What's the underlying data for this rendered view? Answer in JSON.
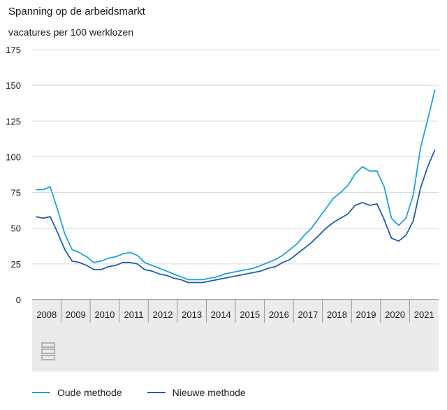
{
  "title": "Spanning op de arbeidsmarkt",
  "subtitle": "vacatures per 100 werklozen",
  "colors": {
    "oude": "#1aa3d9",
    "nieuwe": "#1b5faa",
    "grid": "#d6d6d6",
    "axis_band": "#ebebeb"
  },
  "logo": "cbs-logo-icon",
  "chart_data": {
    "type": "line",
    "title": "Spanning op de arbeidsmarkt",
    "ylabel": "vacatures per 100 werklozen",
    "xlabel": "",
    "ylim": [
      0,
      175
    ],
    "yticks": [
      0,
      25,
      50,
      75,
      100,
      125,
      150,
      175
    ],
    "x_start": 2008.0,
    "x_end": 2022.0,
    "x_step": 0.25,
    "year_labels": [
      "2008",
      "2009",
      "2010",
      "2011",
      "2012",
      "2013",
      "2014",
      "2015",
      "2016",
      "2017",
      "2018",
      "2019",
      "2020",
      "2021"
    ],
    "grid": true,
    "legend_position": "bottom",
    "series": [
      {
        "name": "Oude methode",
        "color": "#1aa3d9",
        "values": [
          77,
          77,
          79,
          63,
          46,
          35,
          33,
          30,
          26,
          27,
          29,
          30,
          32,
          33,
          31,
          26,
          24,
          22,
          20,
          18,
          16,
          14,
          14,
          14,
          15,
          16,
          18,
          19,
          20,
          21,
          22,
          24,
          26,
          28,
          31,
          35,
          39,
          45,
          50,
          57,
          64,
          71,
          75,
          80,
          88,
          93,
          90,
          90,
          79,
          57,
          52,
          57,
          73,
          106,
          126,
          147
        ]
      },
      {
        "name": "Nieuwe methode",
        "color": "#1b5faa",
        "values": [
          58,
          57,
          58,
          47,
          35,
          27,
          26,
          24,
          21,
          21,
          23,
          24,
          26,
          26,
          25,
          21,
          20,
          18,
          17,
          15,
          14,
          12,
          12,
          12,
          13,
          14,
          15,
          16,
          17,
          18,
          19,
          20,
          22,
          23,
          26,
          28,
          32,
          36,
          40,
          45,
          50,
          54,
          57,
          60,
          66,
          68,
          66,
          67,
          56,
          43,
          41,
          45,
          55,
          78,
          93,
          105
        ]
      }
    ]
  }
}
